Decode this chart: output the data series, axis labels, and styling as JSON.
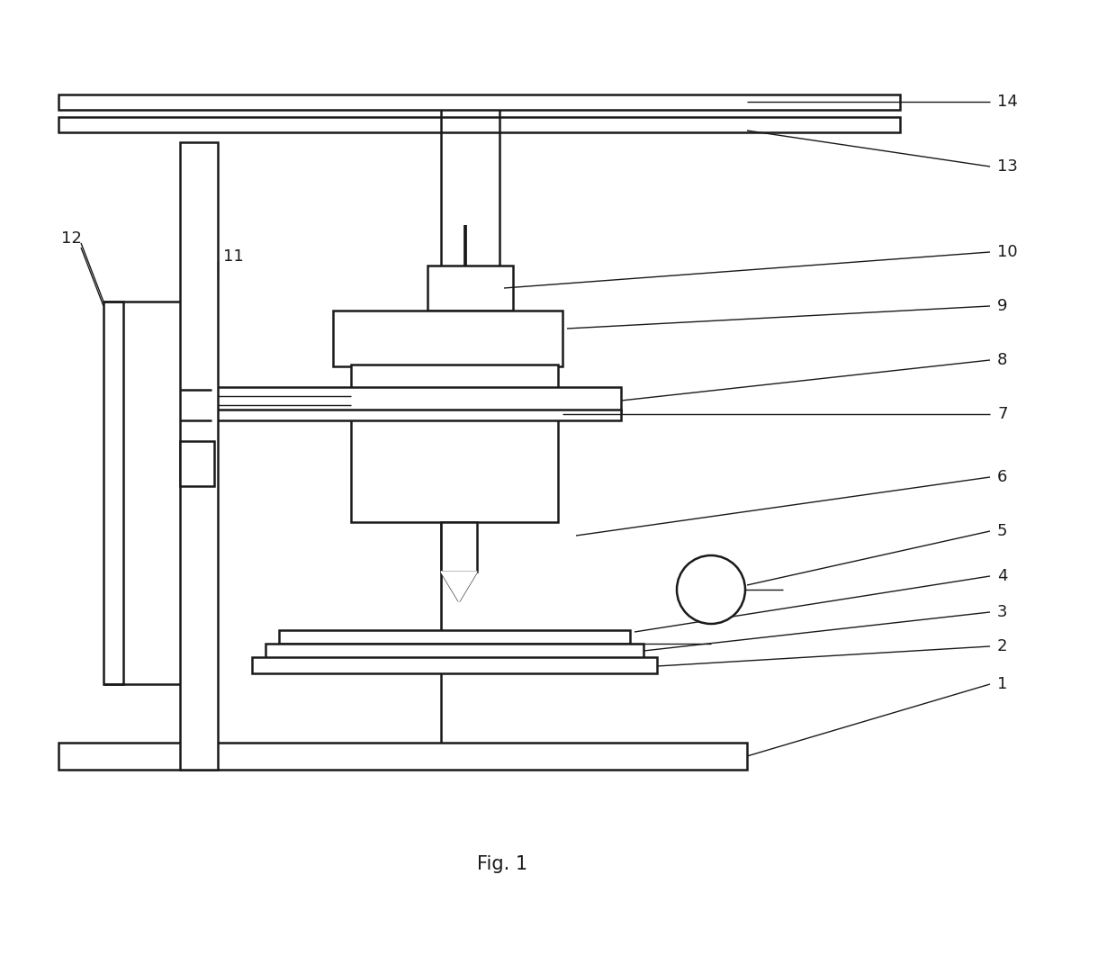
{
  "fig_label": "Fig. 1",
  "bg": "#ffffff",
  "lc": "#1a1a1a",
  "lw": 1.8,
  "tlw": 1.0,
  "fs": 13,
  "fig_fs": 15
}
